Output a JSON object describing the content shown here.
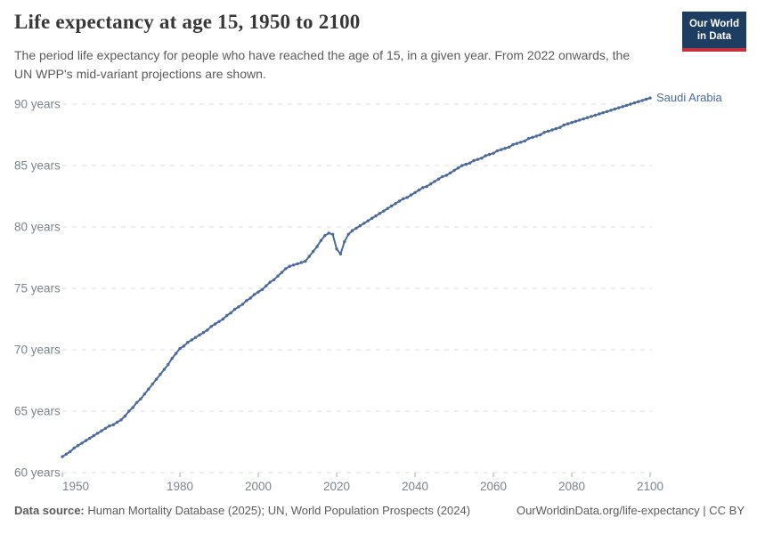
{
  "header": {
    "title": "Life expectancy at age 15, 1950 to 2100",
    "subtitle": "The period life expectancy for people who have reached the age of 15, in a given year. From 2022 onwards, the UN WPP's mid-variant projections are shown.",
    "logo_line1": "Our World",
    "logo_line2": "in Data",
    "logo_bg_color": "#1d3d63",
    "logo_accent_color": "#c5303e"
  },
  "footer": {
    "source_label": "Data source:",
    "source_text": "Human Mortality Database (2025); UN, World Population Prospects (2024)",
    "url": "OurWorldinData.org/life-expectancy",
    "separator": " | ",
    "license": "CC BY"
  },
  "chart_data": {
    "type": "line",
    "title": "Life expectancy at age 15, 1950 to 2100",
    "entity_label": "Saudi Arabia",
    "xlabel": "",
    "ylabel": "",
    "xlim": [
      1950,
      2100
    ],
    "ylim": [
      60,
      90
    ],
    "x_ticks": [
      1950,
      1980,
      2000,
      2020,
      2040,
      2060,
      2080,
      2100
    ],
    "y_ticks": [
      60,
      65,
      70,
      75,
      80,
      85,
      90
    ],
    "y_tick_suffix": " years",
    "grid": "horizontal-dashed",
    "markers": "dots",
    "line_color": "#4c6a9c",
    "grid_color": "#dcdcdc",
    "axis_text_color": "#7b858d",
    "years": {
      "start": 1950,
      "end": 2100,
      "step": 1
    },
    "series": [
      {
        "name": "Saudi Arabia",
        "values": [
          61.3,
          61.5,
          61.7,
          62.0,
          62.2,
          62.4,
          62.6,
          62.8,
          63.0,
          63.2,
          63.4,
          63.6,
          63.8,
          63.9,
          64.1,
          64.3,
          64.6,
          65.0,
          65.3,
          65.7,
          66.0,
          66.4,
          66.8,
          67.2,
          67.6,
          68.0,
          68.4,
          68.8,
          69.3,
          69.7,
          70.1,
          70.3,
          70.6,
          70.8,
          71.0,
          71.2,
          71.4,
          71.6,
          71.9,
          72.1,
          72.3,
          72.5,
          72.8,
          73.0,
          73.3,
          73.5,
          73.7,
          74.0,
          74.2,
          74.5,
          74.7,
          74.9,
          75.2,
          75.5,
          75.7,
          76.0,
          76.3,
          76.6,
          76.8,
          76.9,
          77.0,
          77.1,
          77.2,
          77.6,
          78.0,
          78.4,
          78.9,
          79.3,
          79.5,
          79.4,
          78.2,
          77.8,
          78.8,
          79.4,
          79.7,
          79.9,
          80.1,
          80.3,
          80.5,
          80.7,
          80.9,
          81.1,
          81.3,
          81.5,
          81.7,
          81.9,
          82.1,
          82.3,
          82.4,
          82.6,
          82.8,
          83.0,
          83.2,
          83.3,
          83.5,
          83.7,
          83.9,
          84.1,
          84.2,
          84.4,
          84.6,
          84.8,
          85.0,
          85.1,
          85.2,
          85.4,
          85.5,
          85.6,
          85.8,
          85.9,
          86.0,
          86.2,
          86.3,
          86.4,
          86.5,
          86.7,
          86.8,
          86.9,
          87.0,
          87.2,
          87.3,
          87.4,
          87.5,
          87.7,
          87.8,
          87.9,
          88.0,
          88.1,
          88.3,
          88.4,
          88.5,
          88.6,
          88.7,
          88.8,
          88.9,
          89.0,
          89.1,
          89.2,
          89.3,
          89.4,
          89.5,
          89.6,
          89.7,
          89.8,
          89.9,
          90.0,
          90.1,
          90.2,
          90.3,
          90.4,
          90.5
        ]
      }
    ]
  }
}
